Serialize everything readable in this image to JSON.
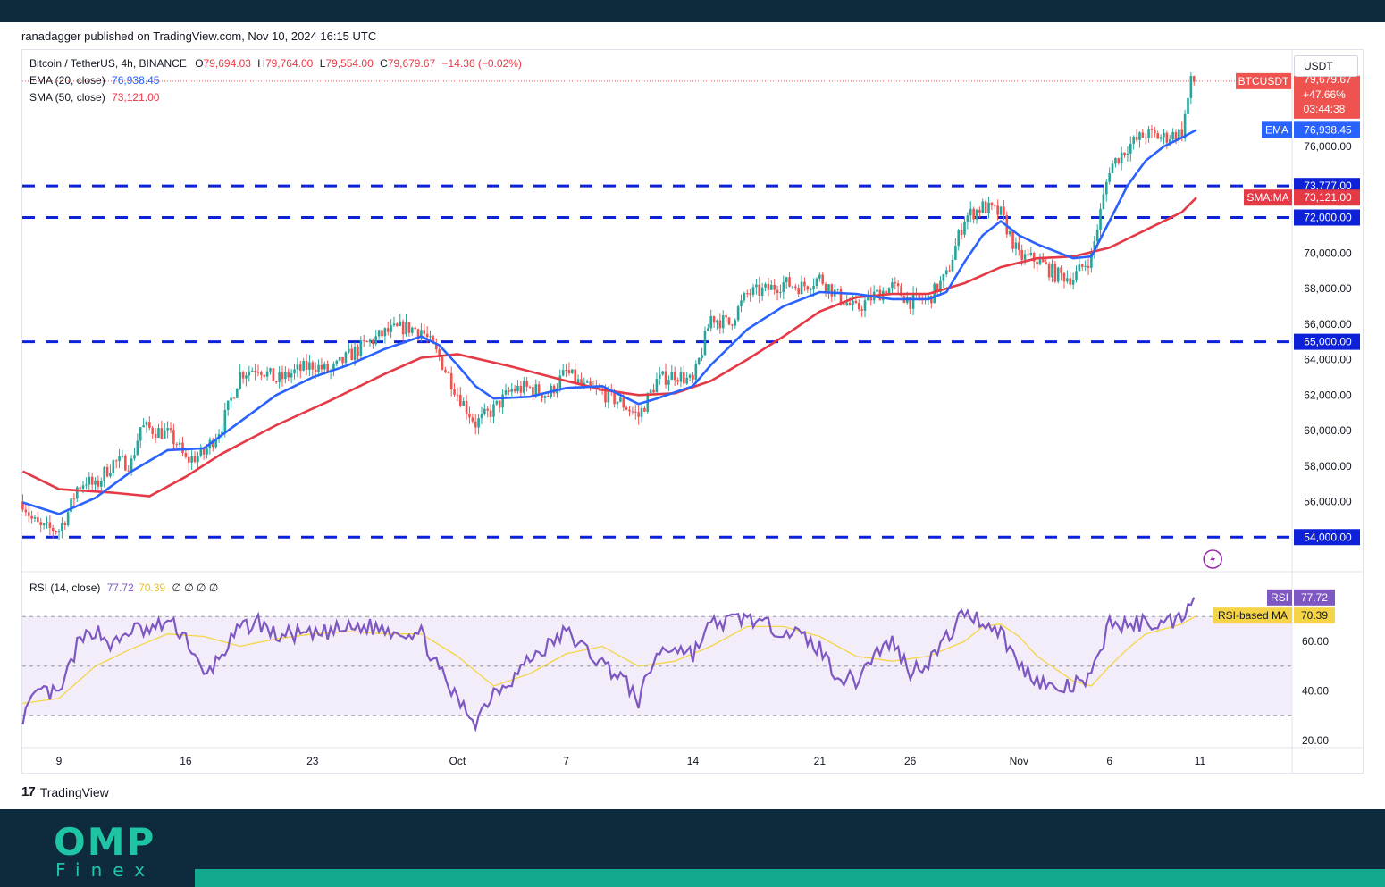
{
  "credit": "ranadagger published on TradingView.com, Nov 10, 2024 16:15 UTC",
  "legend": {
    "symbol": "Bitcoin / TetherUS, 4h, BINANCE",
    "o_label": "O",
    "o_val": "79,694.03",
    "h_label": "H",
    "h_val": "79,764.00",
    "l_label": "L",
    "l_val": "79,554.00",
    "c_label": "C",
    "c_val": "79,679.67",
    "change": "−14.36 (−0.02%)",
    "ema_label": "EMA (20, close)",
    "ema_val": "76,938.45",
    "sma_label": "SMA (50, close)",
    "sma_val": "73,121.00",
    "rsi_label": "RSI (14, close)",
    "rsi_val": "77.72",
    "rsi_ma_val": "70.39",
    "rsi_extra": "∅ ∅ ∅ ∅"
  },
  "currency_button": "USDT",
  "branding": {
    "tradingview": "TradingView",
    "tv_mark": "17",
    "omp": "OMP",
    "finex": "Finex"
  },
  "colors": {
    "up": "#26a69a",
    "down": "#ef5350",
    "ema": "#2962ff",
    "sma": "#e53946",
    "level": "#0d22d8",
    "rsi": "#7e57c2",
    "rsi_ma": "#f5d547"
  },
  "chart_data": {
    "type": "candlestick",
    "symbol": "BTCUSDT",
    "timeframe": "4h",
    "price_axis": {
      "range": [
        53000,
        80500
      ],
      "ticks": [
        "56,000.00",
        "58,000.00",
        "60,000.00",
        "62,000.00",
        "64,000.00",
        "66,000.00",
        "68,000.00",
        "70,000.00",
        "76,000.00"
      ],
      "tick_values": [
        56000,
        58000,
        60000,
        62000,
        64000,
        66000,
        68000,
        70000,
        76000
      ]
    },
    "x_axis": {
      "ticks": [
        "9",
        "16",
        "23",
        "Oct",
        "7",
        "14",
        "21",
        "26",
        "Nov",
        "6",
        "11"
      ],
      "tick_days": [
        0,
        7,
        14,
        22,
        28,
        35,
        42,
        47,
        53,
        58,
        63
      ]
    },
    "support_resistance_levels": [
      {
        "label": "73,777.00",
        "value": 73777
      },
      {
        "label": "72,000.00",
        "value": 72000
      },
      {
        "label": "65,000.00",
        "value": 65000
      },
      {
        "label": "54,000.00",
        "value": 54000
      }
    ],
    "price_path": [
      [
        -2,
        56000
      ],
      [
        -1.5,
        55000
      ],
      [
        -1,
        54500
      ],
      [
        0,
        54400
      ],
      [
        0.6,
        55600
      ],
      [
        1,
        56800
      ],
      [
        1.5,
        57200
      ],
      [
        2,
        56800
      ],
      [
        2.5,
        57600
      ],
      [
        3,
        58200
      ],
      [
        4,
        58200
      ],
      [
        4.5,
        60200
      ],
      [
        5,
        60100
      ],
      [
        6,
        59800
      ],
      [
        6.5,
        59300
      ],
      [
        7,
        58300
      ],
      [
        8,
        58700
      ],
      [
        9,
        60300
      ],
      [
        10,
        63200
      ],
      [
        11,
        63600
      ],
      [
        12,
        62800
      ],
      [
        13,
        63300
      ],
      [
        14,
        63700
      ],
      [
        15,
        63300
      ],
      [
        16,
        64200
      ],
      [
        17,
        64900
      ],
      [
        18,
        65500
      ],
      [
        19,
        65800
      ],
      [
        20,
        65700
      ],
      [
        21,
        64100
      ],
      [
        22,
        62100
      ],
      [
        23,
        60400
      ],
      [
        24,
        61200
      ],
      [
        25,
        62300
      ],
      [
        26,
        62400
      ],
      [
        27,
        62000
      ],
      [
        28,
        63300
      ],
      [
        29,
        62400
      ],
      [
        30,
        62100
      ],
      [
        31,
        61600
      ],
      [
        32,
        60800
      ],
      [
        33,
        62800
      ],
      [
        34,
        63200
      ],
      [
        35,
        62700
      ],
      [
        36,
        66400
      ],
      [
        37,
        66000
      ],
      [
        38,
        67700
      ],
      [
        39,
        67900
      ],
      [
        40,
        68300
      ],
      [
        41,
        68100
      ],
      [
        42,
        68600
      ],
      [
        43,
        67600
      ],
      [
        44,
        66800
      ],
      [
        45,
        67600
      ],
      [
        46,
        68100
      ],
      [
        47,
        67300
      ],
      [
        48,
        67400
      ],
      [
        49,
        68700
      ],
      [
        50,
        72000
      ],
      [
        51,
        72600
      ],
      [
        52,
        72200
      ],
      [
        53,
        69800
      ],
      [
        54,
        69600
      ],
      [
        55,
        68800
      ],
      [
        56,
        68600
      ],
      [
        57,
        69800
      ],
      [
        58,
        74800
      ],
      [
        59,
        76000
      ],
      [
        60,
        76700
      ],
      [
        61,
        76500
      ],
      [
        62,
        76800
      ],
      [
        62.5,
        79600
      ],
      [
        62.8,
        79680
      ]
    ],
    "ema_20_path": [
      [
        -2,
        55950
      ],
      [
        0,
        55300
      ],
      [
        2,
        56200
      ],
      [
        4,
        57700
      ],
      [
        6,
        58900
      ],
      [
        8,
        59000
      ],
      [
        10,
        60500
      ],
      [
        12,
        62000
      ],
      [
        14,
        63000
      ],
      [
        16,
        63700
      ],
      [
        18,
        64600
      ],
      [
        20,
        65300
      ],
      [
        21,
        64800
      ],
      [
        22,
        63700
      ],
      [
        23,
        62500
      ],
      [
        24,
        61800
      ],
      [
        26,
        61900
      ],
      [
        28,
        62400
      ],
      [
        30,
        62500
      ],
      [
        32,
        61500
      ],
      [
        33,
        61800
      ],
      [
        35,
        62500
      ],
      [
        36,
        63700
      ],
      [
        38,
        65700
      ],
      [
        40,
        67000
      ],
      [
        42,
        67800
      ],
      [
        44,
        67700
      ],
      [
        46,
        67400
      ],
      [
        48,
        67400
      ],
      [
        49,
        67800
      ],
      [
        50,
        69500
      ],
      [
        51,
        71000
      ],
      [
        52,
        71800
      ],
      [
        53,
        71000
      ],
      [
        54,
        70500
      ],
      [
        56,
        69700
      ],
      [
        57,
        69800
      ],
      [
        58,
        71800
      ],
      [
        59,
        73800
      ],
      [
        60,
        75200
      ],
      [
        61,
        76000
      ],
      [
        62,
        76500
      ],
      [
        62.8,
        76938
      ]
    ],
    "sma_50_path": [
      [
        -2,
        57700
      ],
      [
        0,
        56700
      ],
      [
        3,
        56500
      ],
      [
        5,
        56300
      ],
      [
        7,
        57400
      ],
      [
        9,
        58700
      ],
      [
        12,
        60300
      ],
      [
        15,
        61700
      ],
      [
        18,
        63200
      ],
      [
        20,
        64100
      ],
      [
        22,
        64300
      ],
      [
        25,
        63600
      ],
      [
        28,
        62800
      ],
      [
        30,
        62300
      ],
      [
        32,
        62000
      ],
      [
        34,
        62100
      ],
      [
        36,
        62800
      ],
      [
        38,
        64000
      ],
      [
        40,
        65300
      ],
      [
        42,
        66700
      ],
      [
        44,
        67500
      ],
      [
        46,
        67700
      ],
      [
        48,
        67700
      ],
      [
        50,
        68300
      ],
      [
        52,
        69200
      ],
      [
        54,
        69700
      ],
      [
        56,
        69800
      ],
      [
        58,
        70300
      ],
      [
        60,
        71300
      ],
      [
        62,
        72300
      ],
      [
        62.8,
        73121
      ]
    ],
    "rsi_panel": {
      "ticks": [
        "20.00",
        "40.00",
        "60.00"
      ],
      "tick_values": [
        20,
        40,
        60
      ],
      "band": [
        30,
        70
      ],
      "rsi_path": [
        [
          -2,
          30
        ],
        [
          -1,
          40
        ],
        [
          0,
          38
        ],
        [
          1,
          58
        ],
        [
          2,
          65
        ],
        [
          3,
          58
        ],
        [
          4,
          65
        ],
        [
          5,
          64
        ],
        [
          6,
          68
        ],
        [
          7,
          62
        ],
        [
          8,
          45
        ],
        [
          9,
          55
        ],
        [
          10,
          65
        ],
        [
          11,
          68
        ],
        [
          12,
          62
        ],
        [
          13,
          63
        ],
        [
          14,
          62
        ],
        [
          15,
          64
        ],
        [
          16,
          65
        ],
        [
          17,
          66
        ],
        [
          18,
          65
        ],
        [
          19,
          64
        ],
        [
          20,
          63
        ],
        [
          21,
          48
        ],
        [
          22,
          36
        ],
        [
          23,
          28
        ],
        [
          24,
          40
        ],
        [
          25,
          45
        ],
        [
          26,
          53
        ],
        [
          27,
          58
        ],
        [
          28,
          64
        ],
        [
          29,
          57
        ],
        [
          30,
          51
        ],
        [
          31,
          46
        ],
        [
          32,
          36
        ],
        [
          33,
          55
        ],
        [
          34,
          58
        ],
        [
          35,
          55
        ],
        [
          36,
          67
        ],
        [
          37,
          68
        ],
        [
          38,
          70
        ],
        [
          39,
          66
        ],
        [
          40,
          65
        ],
        [
          41,
          62
        ],
        [
          42,
          57
        ],
        [
          43,
          46
        ],
        [
          44,
          44
        ],
        [
          45,
          55
        ],
        [
          46,
          60
        ],
        [
          47,
          48
        ],
        [
          48,
          52
        ],
        [
          49,
          61
        ],
        [
          50,
          72
        ],
        [
          51,
          68
        ],
        [
          52,
          64
        ],
        [
          53,
          50
        ],
        [
          54,
          45
        ],
        [
          55,
          40
        ],
        [
          56,
          42
        ],
        [
          57,
          45
        ],
        [
          58,
          68
        ],
        [
          59,
          66
        ],
        [
          60,
          68
        ],
        [
          61,
          67
        ],
        [
          62,
          70
        ],
        [
          62.5,
          78
        ],
        [
          62.8,
          77.72
        ]
      ],
      "rsi_ma_path": [
        [
          -2,
          35
        ],
        [
          0,
          37
        ],
        [
          2,
          50
        ],
        [
          4,
          57
        ],
        [
          6,
          63
        ],
        [
          8,
          62
        ],
        [
          10,
          58
        ],
        [
          12,
          61
        ],
        [
          14,
          63
        ],
        [
          16,
          64
        ],
        [
          18,
          63
        ],
        [
          20,
          63
        ],
        [
          22,
          54
        ],
        [
          24,
          42
        ],
        [
          26,
          47
        ],
        [
          28,
          55
        ],
        [
          30,
          58
        ],
        [
          32,
          50
        ],
        [
          34,
          52
        ],
        [
          36,
          58
        ],
        [
          38,
          66
        ],
        [
          40,
          66
        ],
        [
          42,
          62
        ],
        [
          44,
          54
        ],
        [
          46,
          52
        ],
        [
          48,
          54
        ],
        [
          50,
          60
        ],
        [
          51,
          66
        ],
        [
          52,
          67
        ],
        [
          53,
          62
        ],
        [
          54,
          54
        ],
        [
          56,
          44
        ],
        [
          57,
          42
        ],
        [
          58,
          50
        ],
        [
          59,
          57
        ],
        [
          60,
          63
        ],
        [
          62,
          67
        ],
        [
          62.8,
          70.39
        ]
      ]
    },
    "price_labels": {
      "symbol_tag": "BTCUSDT",
      "last_price": "79,679.67",
      "change_pct": "+47.66%",
      "countdown": "03:44:38",
      "ema_tag": "EMA",
      "ema_value": "76,938.45",
      "sma_tag": "SMA:MA",
      "sma_value": "73,121.00",
      "rsi_tag": "RSI",
      "rsi_value": "77.72",
      "rsi_ma_tag": "RSI-based MA",
      "rsi_ma_value": "70.39"
    }
  }
}
